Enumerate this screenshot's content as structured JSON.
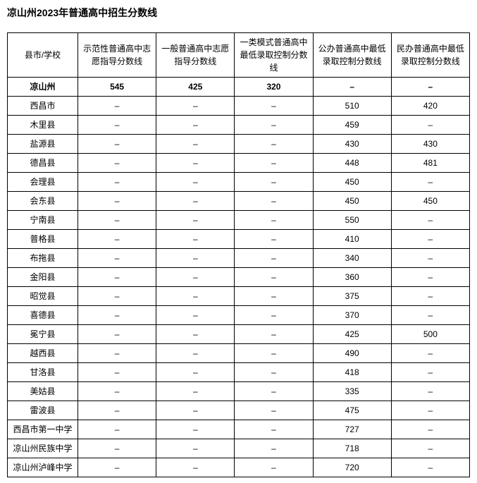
{
  "title": "凉山州2023年普通高中招生分数线",
  "columns": [
    "县市/学校",
    "示范性普通高中志愿指导分数线",
    "一般普通高中志愿指导分数线",
    "一类模式普通高中最低录取控制分数线",
    "公办普通高中最低录取控制分数线",
    "民办普通高中最低录取控制分数线"
  ],
  "rows": [
    {
      "name": "凉山州",
      "c1": "545",
      "c2": "425",
      "c3": "320",
      "c4": "–",
      "c5": "–",
      "bold": true
    },
    {
      "name": "西昌市",
      "c1": "–",
      "c2": "–",
      "c3": "–",
      "c4": "510",
      "c5": "420",
      "bold": false
    },
    {
      "name": "木里县",
      "c1": "–",
      "c2": "–",
      "c3": "–",
      "c4": "459",
      "c5": "–",
      "bold": false
    },
    {
      "name": "盐源县",
      "c1": "–",
      "c2": "–",
      "c3": "–",
      "c4": "430",
      "c5": "430",
      "bold": false
    },
    {
      "name": "德昌县",
      "c1": "–",
      "c2": "–",
      "c3": "–",
      "c4": "448",
      "c5": "481",
      "bold": false
    },
    {
      "name": "会理县",
      "c1": "–",
      "c2": "–",
      "c3": "–",
      "c4": "450",
      "c5": "–",
      "bold": false
    },
    {
      "name": "会东县",
      "c1": "–",
      "c2": "–",
      "c3": "–",
      "c4": "450",
      "c5": "450",
      "bold": false
    },
    {
      "name": "宁南县",
      "c1": "–",
      "c2": "–",
      "c3": "–",
      "c4": "550",
      "c5": "–",
      "bold": false
    },
    {
      "name": "普格县",
      "c1": "–",
      "c2": "–",
      "c3": "–",
      "c4": "410",
      "c5": "–",
      "bold": false
    },
    {
      "name": "布拖县",
      "c1": "–",
      "c2": "–",
      "c3": "–",
      "c4": "340",
      "c5": "–",
      "bold": false
    },
    {
      "name": "金阳县",
      "c1": "–",
      "c2": "–",
      "c3": "–",
      "c4": "360",
      "c5": "–",
      "bold": false
    },
    {
      "name": "昭觉县",
      "c1": "–",
      "c2": "–",
      "c3": "–",
      "c4": "375",
      "c5": "–",
      "bold": false
    },
    {
      "name": "喜德县",
      "c1": "–",
      "c2": "–",
      "c3": "–",
      "c4": "370",
      "c5": "–",
      "bold": false
    },
    {
      "name": "冕宁县",
      "c1": "–",
      "c2": "–",
      "c3": "–",
      "c4": "425",
      "c5": "500",
      "bold": false
    },
    {
      "name": "越西县",
      "c1": "–",
      "c2": "–",
      "c3": "–",
      "c4": "490",
      "c5": "–",
      "bold": false
    },
    {
      "name": "甘洛县",
      "c1": "–",
      "c2": "–",
      "c3": "–",
      "c4": "418",
      "c5": "–",
      "bold": false
    },
    {
      "name": "美姑县",
      "c1": "–",
      "c2": "–",
      "c3": "–",
      "c4": "335",
      "c5": "–",
      "bold": false
    },
    {
      "name": "雷波县",
      "c1": "–",
      "c2": "–",
      "c3": "–",
      "c4": "475",
      "c5": "–",
      "bold": false
    },
    {
      "name": "西昌市第一中学",
      "c1": "–",
      "c2": "–",
      "c3": "–",
      "c4": "727",
      "c5": "–",
      "bold": false
    },
    {
      "name": "凉山州民族中学",
      "c1": "–",
      "c2": "–",
      "c3": "–",
      "c4": "718",
      "c5": "–",
      "bold": false
    },
    {
      "name": "凉山州泸峰中学",
      "c1": "–",
      "c2": "–",
      "c3": "–",
      "c4": "720",
      "c5": "–",
      "bold": false
    }
  ]
}
